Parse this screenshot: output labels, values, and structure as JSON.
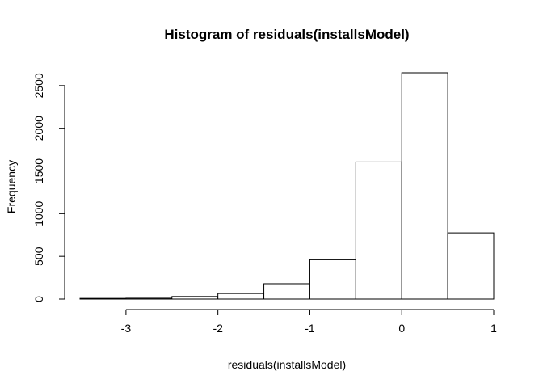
{
  "chart_data": {
    "type": "bar",
    "title": "Histogram of residuals(installsModel)",
    "xlabel": "residuals(installsModel)",
    "ylabel": "Frequency",
    "bins": [
      {
        "x0": -3.5,
        "x1": -3.0,
        "count": 8
      },
      {
        "x0": -3.0,
        "x1": -2.5,
        "count": 10
      },
      {
        "x0": -2.5,
        "x1": -2.0,
        "count": 30
      },
      {
        "x0": -2.0,
        "x1": -1.5,
        "count": 65
      },
      {
        "x0": -1.5,
        "x1": -1.0,
        "count": 180
      },
      {
        "x0": -1.0,
        "x1": -0.5,
        "count": 460
      },
      {
        "x0": -0.5,
        "x1": 0.0,
        "count": 1605
      },
      {
        "x0": 0.0,
        "x1": 0.5,
        "count": 2650
      },
      {
        "x0": 0.5,
        "x1": 1.0,
        "count": 775
      }
    ],
    "x_ticks": [
      -3,
      -2,
      -1,
      0,
      1
    ],
    "x_tick_labels": [
      "-3",
      "-2",
      "-1",
      "0",
      "1"
    ],
    "y_ticks": [
      0,
      500,
      1000,
      1500,
      2000,
      2500
    ],
    "y_tick_labels": [
      "0",
      "500",
      "1000",
      "1500",
      "2000",
      "2500"
    ],
    "xlim": [
      -3.5,
      1.0
    ],
    "ylim": [
      0,
      2650
    ],
    "grid": false,
    "colors": {
      "bar_fill": "#ffffff",
      "bar_stroke": "#000000"
    }
  }
}
